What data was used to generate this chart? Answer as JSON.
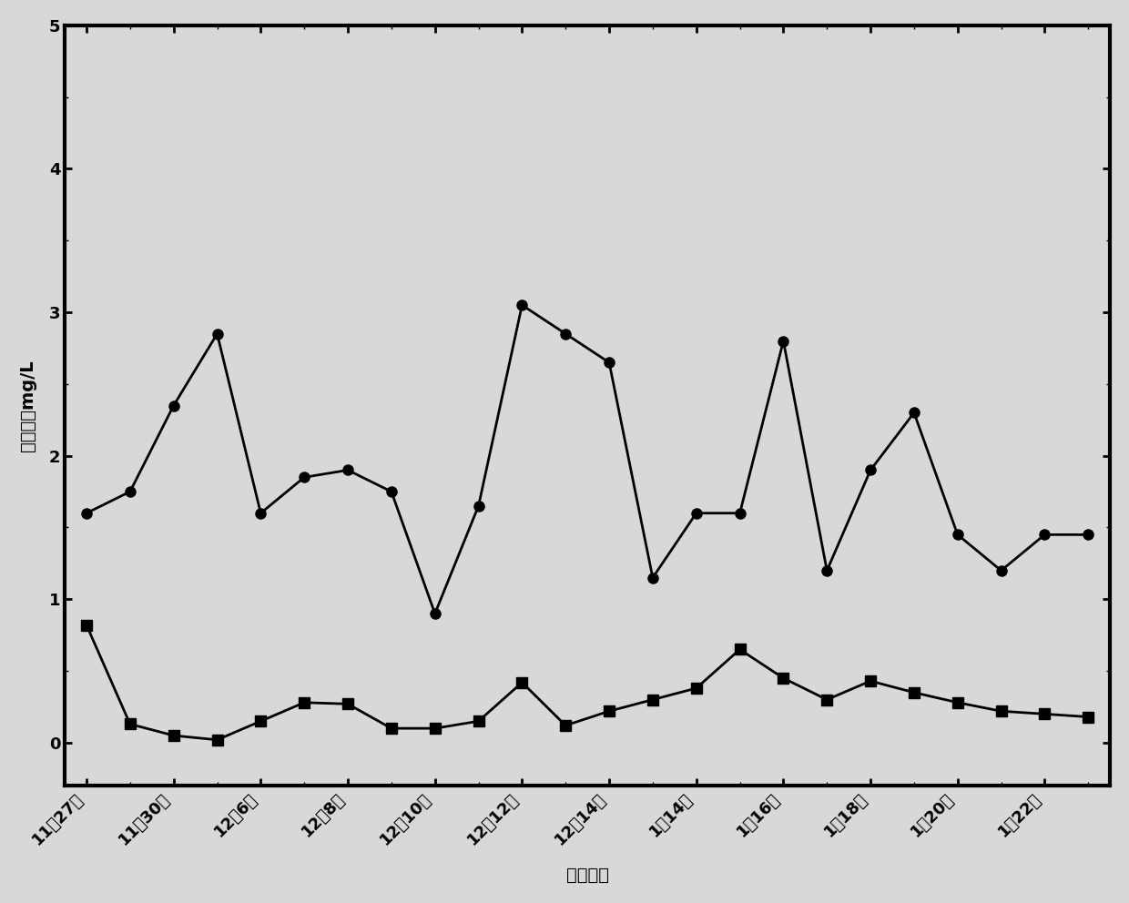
{
  "x_labels": [
    "11月27日",
    "11月30日",
    "12月6日",
    "12月8日",
    "12月10日",
    "12月12日",
    "12月14日",
    "1月14日",
    "1月16日",
    "1月18日",
    "1月20日",
    "1月22日"
  ],
  "series1_y": [
    1.6,
    1.75,
    2.35,
    2.85,
    1.6,
    1.85,
    1.9,
    1.75,
    0.9,
    1.65,
    3.05,
    2.85,
    2.65,
    1.15,
    1.6,
    1.6,
    2.8,
    1.2,
    1.9,
    2.3,
    1.45,
    1.2,
    1.45,
    1.45
  ],
  "series2_y": [
    0.82,
    0.13,
    0.05,
    0.02,
    0.15,
    0.28,
    0.27,
    0.1,
    0.1,
    0.15,
    0.42,
    0.12,
    0.22,
    0.3,
    0.38,
    0.65,
    0.45,
    0.3,
    0.43,
    0.35,
    0.28,
    0.22,
    0.2,
    0.18
  ],
  "x_positions": [
    0,
    1,
    2,
    3,
    4,
    5,
    6,
    7,
    8,
    9,
    10,
    11,
    12,
    13,
    14,
    15,
    16,
    17,
    18,
    19,
    20,
    21,
    22,
    23
  ],
  "tick_positions": [
    0,
    2,
    4,
    6,
    8,
    10,
    12,
    14,
    16,
    18,
    20,
    22
  ],
  "ylabel": "氨氮浓度mg/L",
  "xlabel": "实验日期",
  "ylim": [
    -0.3,
    5.0
  ],
  "yticks": [
    0,
    1,
    2,
    3,
    4,
    5
  ],
  "ytick_labels": [
    "0",
    "1",
    "2",
    "3",
    "4",
    "5"
  ],
  "line_color": "#000000",
  "bg_color": "#d8d8d8",
  "marker1": "o",
  "marker2": "s",
  "markersize1": 8,
  "markersize2": 8,
  "linewidth": 2.0,
  "label_fontsize": 14,
  "tick_fontsize": 13
}
